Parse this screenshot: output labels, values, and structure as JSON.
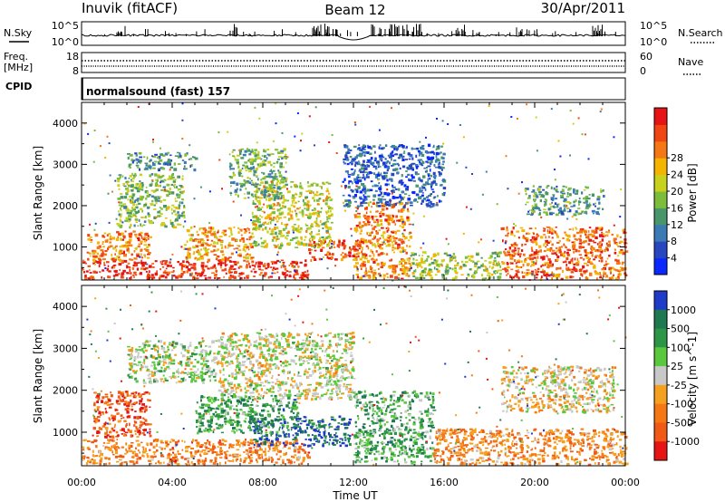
{
  "header": {
    "station": "Inuvik (fitACF)",
    "beam": "Beam 12",
    "date": "30/Apr/2011"
  },
  "noise_panel": {
    "left_label": "N.Sky",
    "right_label": "N.Search",
    "left_ticks": [
      "10^5",
      "10^0"
    ],
    "right_ticks": [
      "10^5",
      "10^0"
    ]
  },
  "freq_panel": {
    "left_label_1": "Freq.",
    "left_label_2": "[MHz]",
    "right_label": "Nave",
    "left_ticks": [
      "18",
      "8"
    ],
    "right_ticks": [
      "60",
      "0"
    ]
  },
  "cpid_panel": {
    "label": "CPID",
    "program": "normalsound (fast) 157"
  },
  "x_axis": {
    "label": "Time UT",
    "ticks": [
      "00:00",
      "04:00",
      "08:00",
      "12:00",
      "16:00",
      "20:00",
      "00:00"
    ]
  },
  "chart_data": [
    {
      "type": "heatmap",
      "name": "power-panel",
      "xlabel": "Time UT",
      "ylabel": "Slant Range [km]",
      "xlim_hours": [
        0,
        24
      ],
      "ylim_km": [
        200,
        4500
      ],
      "y_ticks": [
        1000,
        2000,
        3000,
        4000
      ],
      "colorbar": {
        "label": "Power [dB]",
        "ticks": [
          "4",
          "8",
          "12",
          "16",
          "20",
          "24",
          "28"
        ],
        "colors": [
          "#0a28ff",
          "#2846c0",
          "#3c7ab4",
          "#48966a",
          "#7cbe3c",
          "#c8d21e",
          "#f5b400",
          "#f57814",
          "#f04614",
          "#e61414"
        ]
      },
      "regions": [
        {
          "t": [
            0.0,
            10.0
          ],
          "r": [
            250,
            700
          ],
          "level": 0.9
        },
        {
          "t": [
            10.0,
            12.5
          ],
          "r": [
            700,
            1200
          ],
          "level": 0.85
        },
        {
          "t": [
            0.2,
            3.0
          ],
          "r": [
            700,
            1400
          ],
          "level": 0.75
        },
        {
          "t": [
            4.5,
            7.5
          ],
          "r": [
            700,
            1500
          ],
          "level": 0.7
        },
        {
          "t": [
            7.5,
            11.0
          ],
          "r": [
            1000,
            2600
          ],
          "level": 0.55
        },
        {
          "t": [
            1.5,
            4.5
          ],
          "r": [
            1500,
            2800
          ],
          "level": 0.45
        },
        {
          "t": [
            2.0,
            5.0
          ],
          "r": [
            2900,
            3300
          ],
          "level": 0.3
        },
        {
          "t": [
            6.5,
            9.0
          ],
          "r": [
            2200,
            3400
          ],
          "level": 0.4
        },
        {
          "t": [
            12.0,
            14.5
          ],
          "r": [
            250,
            2100
          ],
          "level": 0.75
        },
        {
          "t": [
            14.5,
            18.5
          ],
          "r": [
            250,
            900
          ],
          "level": 0.5
        },
        {
          "t": [
            18.5,
            24.0
          ],
          "r": [
            250,
            1500
          ],
          "level": 0.8
        },
        {
          "t": [
            19.5,
            23.0
          ],
          "r": [
            1800,
            2500
          ],
          "level": 0.35
        },
        {
          "t": [
            11.5,
            16.0
          ],
          "r": [
            2000,
            3500
          ],
          "level": 0.2
        }
      ]
    },
    {
      "type": "heatmap",
      "name": "velocity-panel",
      "xlabel": "Time UT",
      "ylabel": "Slant Range [km]",
      "xlim_hours": [
        0,
        24
      ],
      "ylim_km": [
        200,
        4500
      ],
      "y_ticks": [
        1000,
        2000,
        3000,
        4000
      ],
      "colorbar": {
        "label": "Velocity [m s^-1]",
        "ticks": [
          "1000",
          "500",
          "100",
          "25",
          "-25",
          "-100",
          "-500",
          "-1000"
        ],
        "colors": [
          "#1e3cc8",
          "#1e7850",
          "#2d9646",
          "#5ac83c",
          "#c8c8c8",
          "#f5a01e",
          "#f57814",
          "#f05a14",
          "#e61414"
        ]
      },
      "regions": [
        {
          "t": [
            0.0,
            10.0
          ],
          "r": [
            250,
            850
          ],
          "level": 0.72
        },
        {
          "t": [
            0.5,
            3.0
          ],
          "r": [
            900,
            2000
          ],
          "level": 0.82
        },
        {
          "t": [
            7.5,
            11.8
          ],
          "r": [
            700,
            1400
          ],
          "level": 0.1
        },
        {
          "t": [
            5.0,
            9.5
          ],
          "r": [
            1000,
            1900
          ],
          "level": 0.28
        },
        {
          "t": [
            6.0,
            12.0
          ],
          "r": [
            1800,
            3400
          ],
          "level": 0.5
        },
        {
          "t": [
            2.0,
            6.0
          ],
          "r": [
            2200,
            3200
          ],
          "level": 0.45
        },
        {
          "t": [
            12.0,
            15.5
          ],
          "r": [
            300,
            2000
          ],
          "level": 0.32
        },
        {
          "t": [
            15.5,
            24.0
          ],
          "r": [
            250,
            1100
          ],
          "level": 0.7
        },
        {
          "t": [
            18.5,
            23.5
          ],
          "r": [
            1500,
            2600
          ],
          "level": 0.55
        }
      ]
    }
  ]
}
